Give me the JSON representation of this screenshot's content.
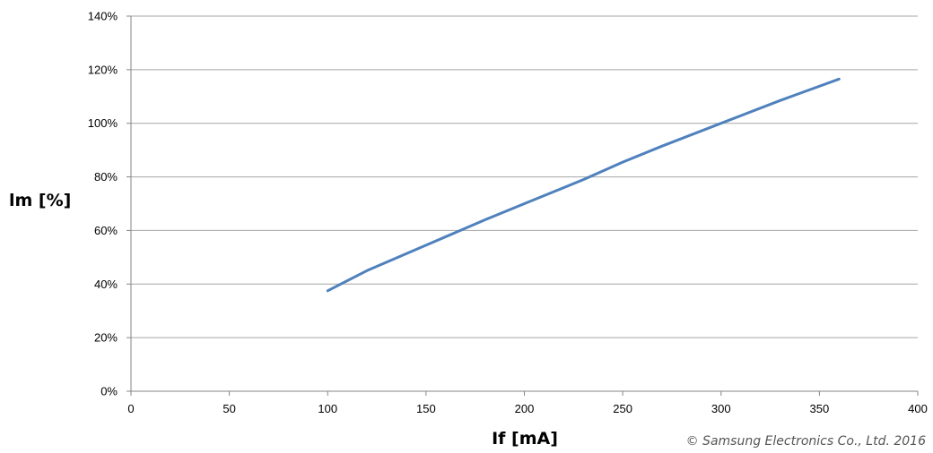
{
  "chart_data": {
    "type": "line",
    "title": "",
    "xlabel": "If [mA]",
    "ylabel": "lm [%]",
    "xlim": [
      0,
      400
    ],
    "ylim": [
      0,
      140
    ],
    "x_ticks": [
      0,
      50,
      100,
      150,
      200,
      250,
      300,
      350,
      400
    ],
    "y_ticks": [
      0,
      20,
      40,
      60,
      80,
      100,
      120,
      140
    ],
    "x_tick_labels": [
      "0",
      "50",
      "100",
      "150",
      "200",
      "250",
      "300",
      "350",
      "400"
    ],
    "y_tick_labels": [
      "0%",
      "20%",
      "40%",
      "60%",
      "80%",
      "100%",
      "120%",
      "140%"
    ],
    "grid": "horizontal",
    "legend": "none",
    "series": [
      {
        "color": "#4f81bd",
        "x": [
          100,
          120,
          150,
          180,
          200,
          230,
          250,
          270,
          300,
          330,
          360
        ],
        "y": [
          37.5,
          45,
          54.5,
          64,
          70,
          79,
          85.5,
          91.5,
          100,
          108.5,
          116.5
        ]
      }
    ]
  },
  "footer": {
    "copyright": "© Samsung Electronics Co., Ltd. 2016"
  },
  "colors": {
    "grid": "#a6a6a6",
    "axis": "#868686",
    "line": "#4f81bd"
  }
}
